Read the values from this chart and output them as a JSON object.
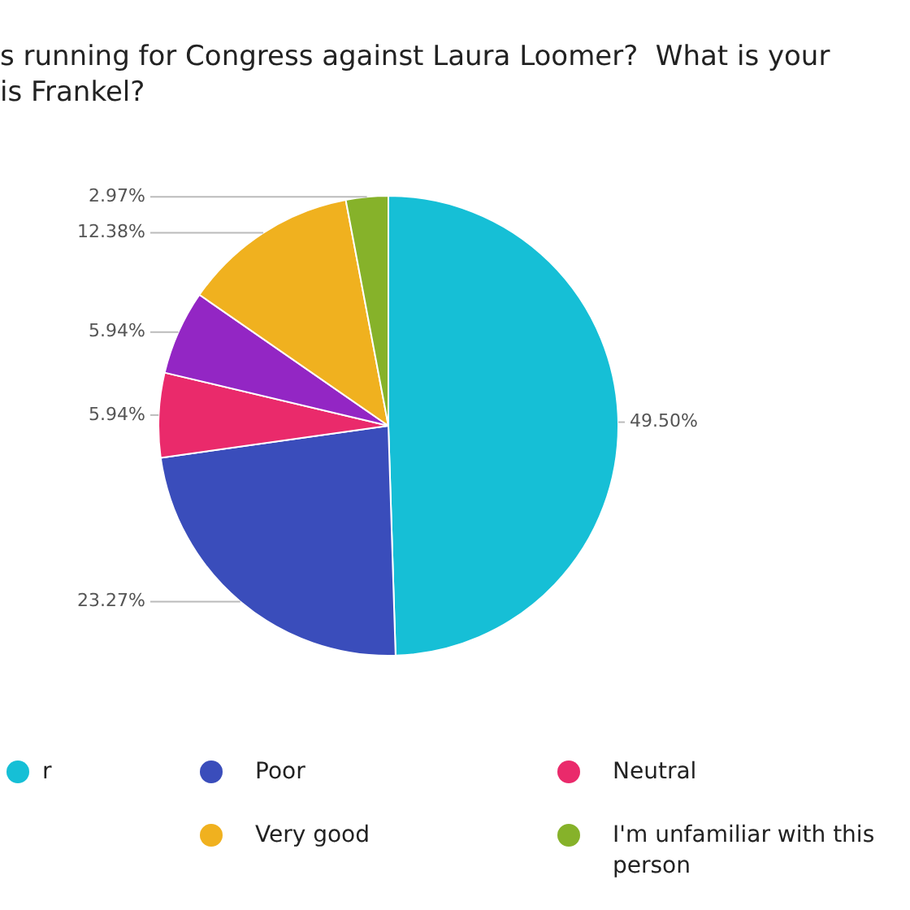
{
  "chart_data": {
    "type": "pie",
    "title": "s running for Congress against Laura Loomer?  What is your\nis Frankel?",
    "categories": [
      "r",
      "Poor",
      "Neutral",
      null,
      "Very good",
      "I'm unfamiliar with this person"
    ],
    "values": [
      49.5,
      23.27,
      5.94,
      5.94,
      12.38,
      2.97
    ],
    "colors": [
      "#16bfd6",
      "#3a4dbb",
      "#ea2a6b",
      "#9326c4",
      "#f0b11f",
      "#86b22a"
    ],
    "value_labels": [
      "49.50%",
      "23.27%",
      "5.94%",
      "5.94%",
      "12.38%",
      "2.97%"
    ],
    "legend": "bottom"
  }
}
